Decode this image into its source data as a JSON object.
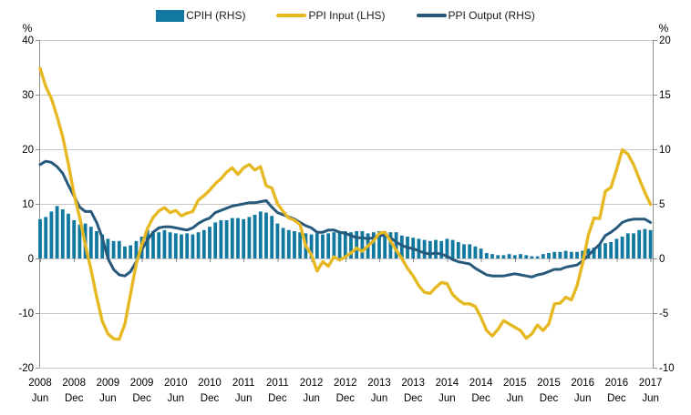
{
  "chart_data": {
    "type": "bar",
    "title": "",
    "legend": [
      {
        "label": "CPIH (RHS)",
        "swatch": "rect",
        "color": "#1179A0"
      },
      {
        "label": "PPI Input (LHS)",
        "swatch": "line",
        "color": "#E6B821"
      },
      {
        "label": "PPI Output (RHS)",
        "swatch": "line",
        "color": "#27597D"
      }
    ],
    "left_axis": {
      "label": "%",
      "min": -20,
      "max": 40,
      "step": 10,
      "ticks": [
        40,
        30,
        20,
        10,
        0,
        -10,
        -20
      ]
    },
    "right_axis": {
      "label": "%",
      "min": -10,
      "max": 20,
      "step": 5,
      "ticks": [
        20,
        15,
        10,
        5,
        0,
        -5,
        -10
      ]
    },
    "grid": "horizontal",
    "legend_position": "top",
    "x_ticks": [
      {
        "year": "2008",
        "month": "Jun"
      },
      {
        "year": "2008",
        "month": "Dec"
      },
      {
        "year": "2009",
        "month": "Jun"
      },
      {
        "year": "2009",
        "month": "Dec"
      },
      {
        "year": "2010",
        "month": "Jun"
      },
      {
        "year": "2010",
        "month": "Dec"
      },
      {
        "year": "2011",
        "month": "Jun"
      },
      {
        "year": "2011",
        "month": "Dec"
      },
      {
        "year": "2012",
        "month": "Jun"
      },
      {
        "year": "2012",
        "month": "Dec"
      },
      {
        "year": "2013",
        "month": "Jun"
      },
      {
        "year": "2013",
        "month": "Dec"
      },
      {
        "year": "2014",
        "month": "Jun"
      },
      {
        "year": "2014",
        "month": "Dec"
      },
      {
        "year": "2015",
        "month": "Jun"
      },
      {
        "year": "2015",
        "month": "Dec"
      },
      {
        "year": "2016",
        "month": "Jun"
      },
      {
        "year": "2016",
        "month": "Dec"
      },
      {
        "year": "2017",
        "month": "Jun"
      }
    ],
    "months_per_point": 1,
    "series": [
      {
        "name": "CPIH (RHS)",
        "type": "bar",
        "axis": "right",
        "color": "#1179A0",
        "values": [
          3.6,
          3.8,
          4.3,
          4.8,
          4.5,
          4.1,
          3.5,
          3.1,
          3.2,
          2.9,
          2.5,
          2.2,
          1.8,
          1.6,
          1.6,
          1.1,
          1.2,
          1.6,
          2.0,
          2.6,
          2.5,
          2.4,
          2.6,
          2.4,
          2.3,
          2.2,
          2.3,
          2.2,
          2.4,
          2.6,
          2.9,
          3.3,
          3.5,
          3.5,
          3.7,
          3.7,
          3.6,
          3.8,
          4.0,
          4.3,
          4.2,
          3.9,
          3.2,
          2.8,
          2.6,
          2.5,
          2.4,
          2.3,
          2.2,
          2.3,
          2.2,
          2.3,
          2.4,
          2.4,
          2.5,
          2.4,
          2.5,
          2.5,
          2.3,
          2.4,
          2.5,
          2.5,
          2.4,
          2.4,
          2.1,
          2.0,
          1.9,
          1.8,
          1.7,
          1.6,
          1.7,
          1.6,
          1.8,
          1.7,
          1.5,
          1.3,
          1.3,
          1.1,
          0.9,
          0.5,
          0.4,
          0.3,
          0.3,
          0.4,
          0.3,
          0.4,
          0.3,
          0.2,
          0.2,
          0.4,
          0.5,
          0.6,
          0.6,
          0.7,
          0.6,
          0.6,
          0.7,
          0.9,
          1.0,
          1.3,
          1.4,
          1.5,
          1.8,
          2.0,
          2.3,
          2.3,
          2.6,
          2.7,
          2.6
        ]
      },
      {
        "name": "PPI Input (LHS)",
        "type": "line",
        "axis": "left",
        "color": "#E6B821",
        "values": [
          34.8,
          31.5,
          29.3,
          26.0,
          22.3,
          17.3,
          11.8,
          7.5,
          2.5,
          -2.0,
          -7.0,
          -11.5,
          -13.8,
          -14.7,
          -14.8,
          -12.0,
          -6.5,
          -1.0,
          2.5,
          5.5,
          7.5,
          8.7,
          9.3,
          8.4,
          8.8,
          7.8,
          8.3,
          8.6,
          10.7,
          11.5,
          12.5,
          13.7,
          14.6,
          15.8,
          16.6,
          15.4,
          16.6,
          17.2,
          16.2,
          16.8,
          13.3,
          12.9,
          10.0,
          8.6,
          7.4,
          7.0,
          6.2,
          2.3,
          0.7,
          -2.3,
          -0.6,
          -1.4,
          0.3,
          -0.3,
          0.3,
          1.0,
          1.9,
          1.3,
          2.3,
          3.2,
          4.6,
          4.8,
          3.2,
          1.5,
          0.0,
          -1.8,
          -3.2,
          -5.0,
          -6.2,
          -6.4,
          -5.3,
          -4.4,
          -4.6,
          -6.6,
          -7.6,
          -8.3,
          -8.3,
          -8.8,
          -10.8,
          -13.2,
          -14.2,
          -13.0,
          -11.4,
          -12.0,
          -12.6,
          -13.2,
          -14.6,
          -13.8,
          -12.2,
          -13.2,
          -12.0,
          -8.3,
          -8.2,
          -7.1,
          -7.6,
          -5.0,
          -0.8,
          4.3,
          7.4,
          7.3,
          12.3,
          13.0,
          16.3,
          19.9,
          19.1,
          17.2,
          14.6,
          12.1,
          9.9
        ]
      },
      {
        "name": "PPI Output (RHS)",
        "type": "line",
        "axis": "right",
        "color": "#27597D",
        "values": [
          8.6,
          8.9,
          8.8,
          8.4,
          7.8,
          6.7,
          5.7,
          4.7,
          4.3,
          4.3,
          3.3,
          1.9,
          0.0,
          -1.0,
          -1.5,
          -1.6,
          -1.2,
          -0.3,
          0.8,
          1.7,
          2.4,
          2.8,
          2.9,
          2.9,
          2.8,
          2.7,
          2.6,
          2.8,
          3.2,
          3.5,
          3.7,
          4.2,
          4.4,
          4.6,
          4.8,
          4.9,
          5.0,
          5.1,
          5.1,
          5.2,
          5.3,
          4.7,
          4.2,
          4.0,
          3.8,
          3.6,
          3.3,
          3.0,
          2.8,
          2.4,
          2.4,
          2.6,
          2.6,
          2.4,
          2.3,
          2.1,
          1.9,
          1.9,
          1.8,
          1.9,
          2.1,
          2.1,
          1.9,
          1.5,
          1.2,
          1.0,
          0.9,
          0.7,
          0.5,
          0.4,
          0.5,
          0.4,
          0.2,
          -0.1,
          -0.3,
          -0.4,
          -0.5,
          -0.9,
          -1.2,
          -1.5,
          -1.6,
          -1.6,
          -1.6,
          -1.5,
          -1.4,
          -1.5,
          -1.6,
          -1.7,
          -1.5,
          -1.4,
          -1.2,
          -1.0,
          -1.0,
          -0.8,
          -0.7,
          -0.6,
          -0.2,
          0.3,
          0.8,
          1.3,
          2.1,
          2.4,
          2.8,
          3.3,
          3.5,
          3.6,
          3.6,
          3.6,
          3.3
        ]
      }
    ],
    "colors": {
      "gridline": "#C8C8C8",
      "axis": "#8E8E8E",
      "text": "#000000"
    }
  }
}
